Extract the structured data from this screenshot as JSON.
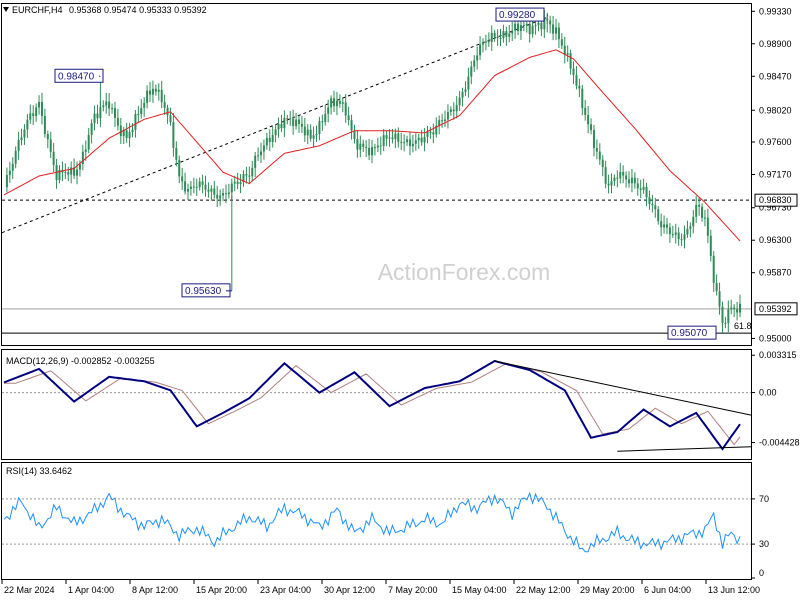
{
  "header": {
    "symbol": "EURCHF,H4",
    "ohlc": "0.95368 0.95474 0.95333 0.95392"
  },
  "watermark": "ActionForex.com",
  "price_labels": {
    "high": "0.99280",
    "high2": "0.98470",
    "low1": "0.95630",
    "low2": "0.95070",
    "level": "0.96830",
    "current": "0.95392",
    "fib": "61.8"
  },
  "colors": {
    "candle": "#2e8b57",
    "ma": "#e02020",
    "macd_line": "#000080",
    "macd_signal": "#b08080",
    "rsi": "#1e90ff",
    "trendline": "#000000"
  },
  "macd_panel": {
    "title": "MACD(12,26,9) -0.002852 -0.003255",
    "ticks": [
      "0.003315",
      "0.00",
      "-0.004428"
    ]
  },
  "rsi_panel": {
    "title": "RSI(14) 33.6462",
    "ticks": [
      "70",
      "30",
      "0"
    ]
  },
  "chart_data": {
    "type": "candlestick",
    "symbol": "EURCHF",
    "timeframe": "H4",
    "y_ticks": [
      "0.99330",
      "0.98900",
      "0.98470",
      "0.98020",
      "0.97600",
      "0.97170",
      "0.96730",
      "0.96300",
      "0.95870",
      "0.95000"
    ],
    "ylim": [
      0.949,
      0.994
    ],
    "x_ticks": [
      "22 Mar 2024",
      "1 Apr 04:00",
      "8 Apr 12:00",
      "15 Apr 20:00",
      "23 Apr 04:00",
      "30 Apr 12:00",
      "7 May 20:00",
      "15 May 04:00",
      "22 May 12:00",
      "29 May 20:00",
      "6 Jun 04:00",
      "13 Jun 12:00"
    ],
    "close_path": [
      [
        0,
        0.97
      ],
      [
        3,
        0.9735
      ],
      [
        6,
        0.977
      ],
      [
        9,
        0.9795
      ],
      [
        12,
        0.981
      ],
      [
        15,
        0.976
      ],
      [
        18,
        0.9715
      ],
      [
        21,
        0.9722
      ],
      [
        24,
        0.9718
      ],
      [
        27,
        0.974
      ],
      [
        30,
        0.9785
      ],
      [
        33,
        0.9805
      ],
      [
        36,
        0.9812
      ],
      [
        39,
        0.978
      ],
      [
        42,
        0.9765
      ],
      [
        45,
        0.979
      ],
      [
        48,
        0.9815
      ],
      [
        51,
        0.9832
      ],
      [
        54,
        0.9818
      ],
      [
        57,
        0.9782
      ],
      [
        60,
        0.9712
      ],
      [
        63,
        0.9695
      ],
      [
        66,
        0.9705
      ],
      [
        69,
        0.97
      ],
      [
        72,
        0.969
      ],
      [
        75,
        0.9688
      ],
      [
        78,
        0.9702
      ],
      [
        81,
        0.971
      ],
      [
        84,
        0.9718
      ],
      [
        87,
        0.9745
      ],
      [
        90,
        0.976
      ],
      [
        93,
        0.9775
      ],
      [
        96,
        0.979
      ],
      [
        99,
        0.9788
      ],
      [
        102,
        0.978
      ],
      [
        105,
        0.9765
      ],
      [
        108,
        0.978
      ],
      [
        111,
        0.9808
      ],
      [
        114,
        0.9815
      ],
      [
        117,
        0.9802
      ],
      [
        120,
        0.976
      ],
      [
        123,
        0.9752
      ],
      [
        126,
        0.9748
      ],
      [
        129,
        0.976
      ],
      [
        132,
        0.9768
      ],
      [
        135,
        0.9763
      ],
      [
        138,
        0.9758
      ],
      [
        141,
        0.976
      ],
      [
        144,
        0.9767
      ],
      [
        147,
        0.9775
      ],
      [
        150,
        0.979
      ],
      [
        153,
        0.98
      ],
      [
        156,
        0.9815
      ],
      [
        159,
        0.9845
      ],
      [
        162,
        0.988
      ],
      [
        165,
        0.9895
      ],
      [
        168,
        0.99
      ],
      [
        171,
        0.99
      ],
      [
        174,
        0.9908
      ],
      [
        177,
        0.9915
      ],
      [
        180,
        0.991
      ],
      [
        183,
        0.9915
      ],
      [
        186,
        0.992
      ],
      [
        189,
        0.9905
      ],
      [
        192,
        0.988
      ],
      [
        195,
        0.985
      ],
      [
        198,
        0.981
      ],
      [
        201,
        0.977
      ],
      [
        204,
        0.9735
      ],
      [
        207,
        0.97
      ],
      [
        210,
        0.9718
      ],
      [
        213,
        0.9712
      ],
      [
        216,
        0.9705
      ],
      [
        219,
        0.9695
      ],
      [
        222,
        0.9675
      ],
      [
        225,
        0.965
      ],
      [
        228,
        0.9642
      ],
      [
        231,
        0.9632
      ],
      [
        234,
        0.964
      ],
      [
        237,
        0.9675
      ],
      [
        240,
        0.966
      ],
      [
        243,
        0.958
      ],
      [
        246,
        0.952
      ],
      [
        249,
        0.954
      ],
      [
        252,
        0.9539
      ]
    ],
    "ma_path": [
      [
        0,
        0.969
      ],
      [
        12,
        0.9715
      ],
      [
        24,
        0.9725
      ],
      [
        36,
        0.9765
      ],
      [
        48,
        0.979
      ],
      [
        57,
        0.98
      ],
      [
        66,
        0.976
      ],
      [
        75,
        0.972
      ],
      [
        84,
        0.9705
      ],
      [
        96,
        0.9745
      ],
      [
        108,
        0.9755
      ],
      [
        120,
        0.9775
      ],
      [
        132,
        0.9775
      ],
      [
        144,
        0.9772
      ],
      [
        156,
        0.9795
      ],
      [
        168,
        0.9848
      ],
      [
        180,
        0.9872
      ],
      [
        189,
        0.9882
      ],
      [
        195,
        0.987
      ],
      [
        204,
        0.983
      ],
      [
        216,
        0.9778
      ],
      [
        228,
        0.9722
      ],
      [
        240,
        0.968
      ],
      [
        252,
        0.9629
      ]
    ],
    "macd_path": [
      [
        0,
        0.0009
      ],
      [
        12,
        0.0021
      ],
      [
        24,
        -0.0008
      ],
      [
        36,
        0.0014
      ],
      [
        48,
        0.001
      ],
      [
        57,
        0.0002
      ],
      [
        66,
        -0.003
      ],
      [
        75,
        -0.0018
      ],
      [
        84,
        -0.0005
      ],
      [
        96,
        0.0026
      ],
      [
        108,
        0.0
      ],
      [
        120,
        0.0018
      ],
      [
        132,
        -0.0012
      ],
      [
        144,
        0.0004
      ],
      [
        156,
        0.001
      ],
      [
        168,
        0.0028
      ],
      [
        180,
        0.002
      ],
      [
        192,
        0.0002
      ],
      [
        201,
        -0.004
      ],
      [
        210,
        -0.0035
      ],
      [
        219,
        -0.0015
      ],
      [
        228,
        -0.003
      ],
      [
        237,
        -0.0018
      ],
      [
        246,
        -0.005
      ],
      [
        252,
        -0.0028
      ]
    ],
    "rsi_path": [
      [
        0,
        52
      ],
      [
        6,
        68
      ],
      [
        12,
        44
      ],
      [
        18,
        62
      ],
      [
        24,
        48
      ],
      [
        30,
        58
      ],
      [
        36,
        72
      ],
      [
        42,
        55
      ],
      [
        48,
        46
      ],
      [
        54,
        52
      ],
      [
        60,
        38
      ],
      [
        66,
        44
      ],
      [
        72,
        32
      ],
      [
        78,
        44
      ],
      [
        84,
        54
      ],
      [
        90,
        46
      ],
      [
        96,
        62
      ],
      [
        102,
        56
      ],
      [
        108,
        45
      ],
      [
        114,
        60
      ],
      [
        120,
        40
      ],
      [
        126,
        52
      ],
      [
        132,
        40
      ],
      [
        138,
        45
      ],
      [
        144,
        52
      ],
      [
        150,
        48
      ],
      [
        156,
        66
      ],
      [
        162,
        62
      ],
      [
        168,
        72
      ],
      [
        174,
        58
      ],
      [
        180,
        74
      ],
      [
        186,
        64
      ],
      [
        192,
        42
      ],
      [
        198,
        24
      ],
      [
        204,
        33
      ],
      [
        210,
        40
      ],
      [
        216,
        32
      ],
      [
        222,
        30
      ],
      [
        228,
        33
      ],
      [
        234,
        38
      ],
      [
        240,
        42
      ],
      [
        243,
        56
      ],
      [
        246,
        30
      ],
      [
        249,
        40
      ],
      [
        252,
        34
      ]
    ]
  }
}
